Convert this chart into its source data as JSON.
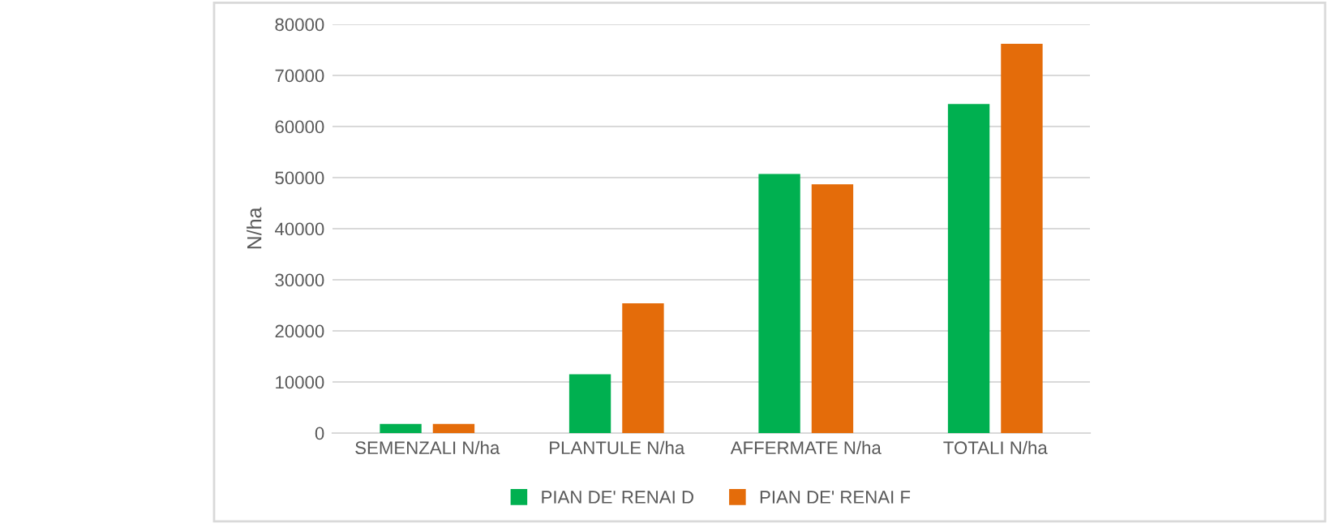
{
  "chart_data": {
    "type": "bar",
    "ylabel": "N/ha",
    "categories": [
      "SEMENZALI N/ha",
      "PLANTULE N/ha",
      "AFFERMATE N/ha",
      "TOTALI N/ha"
    ],
    "series": [
      {
        "name": "PIAN DE' RENAI D",
        "color": "#00b050",
        "values": [
          1800,
          11500,
          50700,
          64400
        ]
      },
      {
        "name": "PIAN DE' RENAI F",
        "color": "#e46c0a",
        "values": [
          1800,
          25400,
          48700,
          76200
        ]
      }
    ],
    "ylim": [
      0,
      80000
    ],
    "yticks": [
      0,
      10000,
      20000,
      30000,
      40000,
      50000,
      60000,
      70000,
      80000
    ],
    "grid": "y",
    "legend": "bottom"
  }
}
